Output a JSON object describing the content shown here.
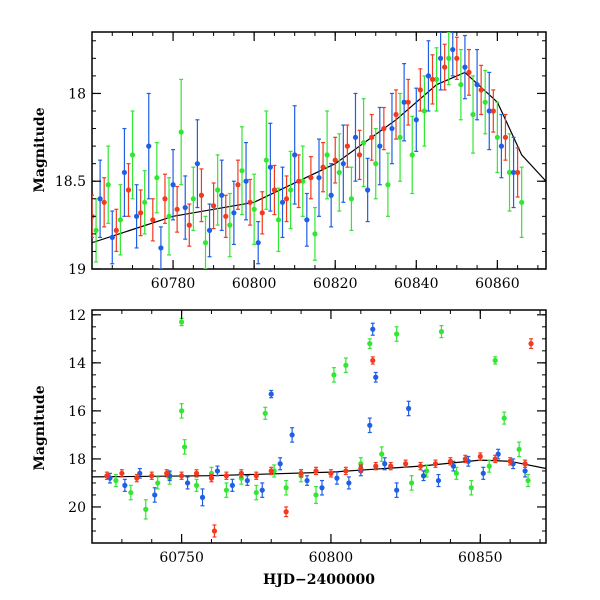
{
  "colors": {
    "green": "#33e633",
    "blue": "#1f5fe6",
    "red": "#f23a1f",
    "model": "#000000"
  },
  "chart_data": [
    {
      "type": "scatter",
      "panel": "top",
      "title": "",
      "xlabel": "",
      "ylabel": "Magnitude",
      "xlim": [
        60760,
        60872
      ],
      "ylim": [
        19.0,
        17.65
      ],
      "y_inverted": true,
      "xticks": [
        60780,
        60800,
        60820,
        60840,
        60860
      ],
      "xtick_labels": [
        "60780",
        "60800",
        "60820",
        "60840",
        "60860"
      ],
      "yticks": [
        18.0,
        18.5,
        19.0
      ],
      "ytick_labels": [
        "18",
        "18.5",
        "19"
      ],
      "grid": false,
      "legend": "none",
      "series": [
        {
          "color": "green",
          "x": [
            60761,
            60764,
            60767,
            60770,
            60773,
            60776,
            60779,
            60782,
            60785,
            60788,
            60791,
            60794,
            60797,
            60800,
            60803,
            60806,
            60809,
            60812,
            60815,
            60818,
            60821,
            60824,
            60827,
            60830,
            60833,
            60836,
            60839,
            60842,
            60845,
            60848,
            60851,
            60854,
            60857,
            60860,
            60863,
            60866
          ],
          "y": [
            18.78,
            18.52,
            18.72,
            18.35,
            18.62,
            18.48,
            18.7,
            18.22,
            18.6,
            18.85,
            18.55,
            18.75,
            18.44,
            18.66,
            18.38,
            18.72,
            18.55,
            18.5,
            18.8,
            18.35,
            18.45,
            18.6,
            18.28,
            18.4,
            18.52,
            18.25,
            18.35,
            18.1,
            17.92,
            17.8,
            17.95,
            18.12,
            18.05,
            18.25,
            18.45,
            18.62
          ],
          "yerr": [
            0.18,
            0.22,
            0.2,
            0.25,
            0.18,
            0.2,
            0.22,
            0.3,
            0.18,
            0.15,
            0.2,
            0.18,
            0.25,
            0.2,
            0.28,
            0.18,
            0.22,
            0.2,
            0.15,
            0.25,
            0.22,
            0.18,
            0.25,
            0.2,
            0.18,
            0.25,
            0.22,
            0.2,
            0.18,
            0.15,
            0.2,
            0.22,
            0.18,
            0.2,
            0.22,
            0.2
          ]
        },
        {
          "color": "blue",
          "x": [
            60762,
            60765,
            60768,
            60771,
            60774,
            60777,
            60780,
            60783,
            60786,
            60789,
            60792,
            60795,
            60798,
            60801,
            60804,
            60807,
            60810,
            60813,
            60816,
            60819,
            60822,
            60825,
            60828,
            60831,
            60834,
            60837,
            60840,
            60843,
            60846,
            60849,
            60852,
            60855,
            60858,
            60861,
            60864
          ],
          "y": [
            18.6,
            18.82,
            18.45,
            18.7,
            18.3,
            18.88,
            18.52,
            18.65,
            18.4,
            18.78,
            18.58,
            18.68,
            18.5,
            18.85,
            18.42,
            18.62,
            18.35,
            18.72,
            18.48,
            18.58,
            18.4,
            18.25,
            18.55,
            18.3,
            18.2,
            18.05,
            18.15,
            17.9,
            17.8,
            17.75,
            17.85,
            17.95,
            18.1,
            18.3,
            18.45
          ],
          "yerr": [
            0.22,
            0.15,
            0.25,
            0.18,
            0.3,
            0.12,
            0.2,
            0.18,
            0.25,
            0.15,
            0.2,
            0.18,
            0.22,
            0.12,
            0.25,
            0.2,
            0.28,
            0.15,
            0.22,
            0.18,
            0.22,
            0.25,
            0.18,
            0.22,
            0.2,
            0.22,
            0.18,
            0.2,
            0.18,
            0.15,
            0.18,
            0.2,
            0.22,
            0.18,
            0.2
          ]
        },
        {
          "color": "red",
          "x": [
            60760,
            60763,
            60766,
            60769,
            60772,
            60775,
            60778,
            60781,
            60784,
            60787,
            60790,
            60793,
            60796,
            60799,
            60802,
            60805,
            60808,
            60811,
            60814,
            60817,
            60820,
            60823,
            60826,
            60829,
            60832,
            60835,
            60838,
            60841,
            60844,
            60847,
            60850,
            60853,
            60856,
            60859,
            60862,
            60865
          ],
          "y": [
            18.7,
            18.62,
            18.78,
            18.55,
            18.68,
            18.72,
            18.6,
            18.66,
            18.75,
            18.58,
            18.64,
            18.7,
            18.52,
            18.62,
            18.68,
            18.55,
            18.6,
            18.5,
            18.48,
            18.42,
            18.38,
            18.3,
            18.35,
            18.25,
            18.2,
            18.12,
            18.05,
            17.98,
            17.92,
            17.85,
            17.8,
            17.88,
            17.98,
            18.1,
            18.25,
            18.45
          ],
          "yerr": [
            0.12,
            0.14,
            0.12,
            0.15,
            0.13,
            0.12,
            0.14,
            0.13,
            0.12,
            0.15,
            0.13,
            0.12,
            0.14,
            0.13,
            0.12,
            0.14,
            0.13,
            0.15,
            0.12,
            0.14,
            0.13,
            0.12,
            0.14,
            0.13,
            0.12,
            0.14,
            0.13,
            0.12,
            0.14,
            0.13,
            0.12,
            0.13,
            0.14,
            0.12,
            0.13,
            0.14
          ]
        }
      ],
      "model_curve": {
        "x": [
          60760,
          60780,
          60800,
          60820,
          60835,
          60845,
          60852,
          60860,
          60866,
          60872
        ],
        "y": [
          18.85,
          18.7,
          18.62,
          18.4,
          18.15,
          17.95,
          17.88,
          18.05,
          18.35,
          18.5
        ]
      }
    },
    {
      "type": "scatter",
      "panel": "bottom",
      "title": "",
      "xlabel": "HJD−2400000",
      "ylabel": "Magnitude",
      "xlim": [
        60720,
        60872
      ],
      "ylim": [
        21.5,
        11.8
      ],
      "y_inverted": true,
      "xticks": [
        60750,
        60800,
        60850
      ],
      "xtick_labels": [
        "60750",
        "60800",
        "60850"
      ],
      "yticks": [
        12,
        14,
        16,
        18,
        20
      ],
      "ytick_labels": [
        "12",
        "14",
        "16",
        "18",
        "20"
      ],
      "grid": false,
      "legend": "none",
      "series": [
        {
          "color": "green",
          "x": [
            60728,
            60733,
            60738,
            60742,
            60746,
            60750,
            60750,
            60751,
            60755,
            60760,
            60765,
            60770,
            60775,
            60778,
            60781,
            60785,
            60790,
            60795,
            60801,
            60805,
            60810,
            60813,
            60817,
            60822,
            60827,
            60832,
            60837,
            60842,
            60847,
            60853,
            60855,
            60858,
            60863,
            60866
          ],
          "y": [
            18.9,
            19.4,
            20.1,
            19.0,
            18.8,
            12.3,
            16.0,
            17.5,
            19.1,
            18.6,
            19.3,
            18.8,
            19.4,
            16.1,
            18.5,
            19.2,
            18.7,
            19.5,
            14.5,
            14.1,
            18.2,
            13.2,
            17.8,
            12.8,
            19.0,
            18.5,
            12.7,
            18.6,
            19.2,
            18.3,
            13.9,
            16.3,
            17.6,
            18.9
          ],
          "yerr": [
            0.25,
            0.3,
            0.4,
            0.25,
            0.25,
            0.15,
            0.3,
            0.3,
            0.25,
            0.25,
            0.3,
            0.25,
            0.3,
            0.25,
            0.25,
            0.3,
            0.25,
            0.35,
            0.3,
            0.3,
            0.25,
            0.2,
            0.3,
            0.3,
            0.3,
            0.25,
            0.25,
            0.25,
            0.3,
            0.25,
            0.15,
            0.25,
            0.3,
            0.25
          ]
        },
        {
          "color": "blue",
          "x": [
            60726,
            60731,
            60736,
            60741,
            60746,
            60752,
            60757,
            60762,
            60767,
            60772,
            60777,
            60780,
            60783,
            60787,
            60792,
            60797,
            60802,
            60806,
            60810,
            60813,
            60814,
            60815,
            60818,
            60822,
            60826,
            60831,
            60836,
            60841,
            60846,
            60851,
            60856,
            60861,
            60865
          ],
          "y": [
            18.8,
            19.1,
            18.6,
            19.5,
            18.7,
            19.0,
            19.6,
            18.5,
            19.1,
            18.9,
            19.3,
            15.3,
            18.2,
            17.0,
            18.9,
            19.2,
            18.8,
            19.0,
            18.5,
            16.6,
            12.6,
            14.6,
            18.2,
            19.3,
            15.9,
            18.7,
            18.9,
            18.3,
            18.1,
            18.6,
            17.8,
            18.2,
            18.5
          ],
          "yerr": [
            0.2,
            0.25,
            0.2,
            0.3,
            0.2,
            0.25,
            0.35,
            0.2,
            0.25,
            0.2,
            0.3,
            0.15,
            0.25,
            0.3,
            0.2,
            0.3,
            0.25,
            0.25,
            0.2,
            0.3,
            0.25,
            0.2,
            0.25,
            0.3,
            0.3,
            0.2,
            0.25,
            0.2,
            0.2,
            0.25,
            0.2,
            0.2,
            0.25
          ]
        },
        {
          "color": "red",
          "x": [
            60725,
            60730,
            60735,
            60740,
            60745,
            60750,
            60755,
            60760,
            60761,
            60765,
            60770,
            60775,
            60780,
            60785,
            60790,
            60795,
            60800,
            60805,
            60810,
            60814,
            60815,
            60820,
            60825,
            60830,
            60835,
            60840,
            60845,
            60850,
            60855,
            60860,
            60865,
            60867
          ],
          "y": [
            18.7,
            18.6,
            18.8,
            18.7,
            18.6,
            18.7,
            18.6,
            18.8,
            21.0,
            18.7,
            18.6,
            18.7,
            18.5,
            20.2,
            18.6,
            18.5,
            18.6,
            18.5,
            18.4,
            13.9,
            18.3,
            18.3,
            18.2,
            18.3,
            18.2,
            18.1,
            18.0,
            17.9,
            18.0,
            18.1,
            18.2,
            13.2
          ],
          "yerr": [
            0.15,
            0.15,
            0.15,
            0.15,
            0.15,
            0.15,
            0.15,
            0.15,
            0.25,
            0.15,
            0.15,
            0.15,
            0.15,
            0.2,
            0.15,
            0.15,
            0.15,
            0.15,
            0.15,
            0.15,
            0.15,
            0.15,
            0.15,
            0.15,
            0.15,
            0.15,
            0.15,
            0.15,
            0.15,
            0.15,
            0.15,
            0.2
          ]
        }
      ],
      "model_curve": {
        "x": [
          60720,
          60760,
          60800,
          60830,
          60850,
          60860,
          60872
        ],
        "y": [
          18.75,
          18.7,
          18.55,
          18.3,
          18.05,
          18.1,
          18.4
        ]
      }
    }
  ]
}
